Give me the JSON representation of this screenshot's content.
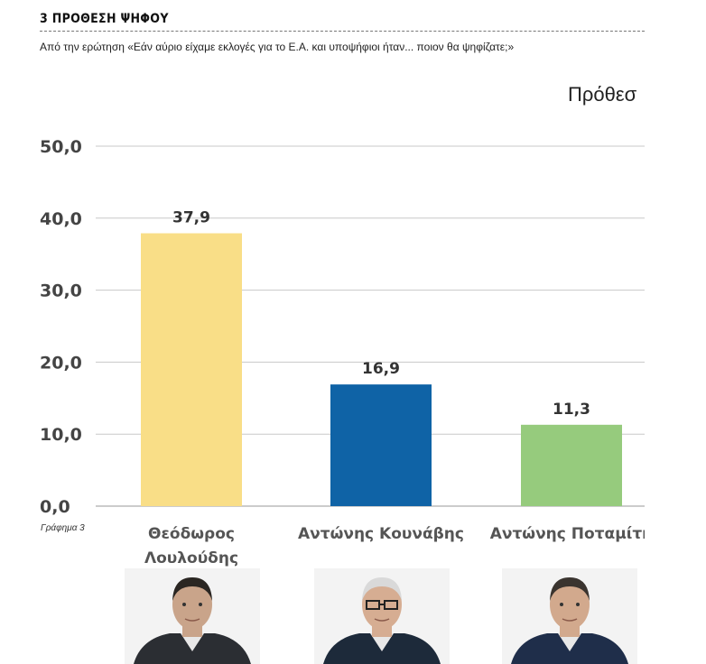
{
  "header": {
    "title": "3 ΠΡΟΘΕΣΗ ΨΗΦΟΥ",
    "subtitle": "Από την ερώτηση «Εάν αύριο είχαμε εκλογές για το Ε.Α. και υποψήφιοι ήταν... ποιον θα ψηφίζατε;»"
  },
  "chart_heading": "Πρόθεσ",
  "source_note": "Γράφημα 3",
  "chart_data": {
    "type": "bar",
    "categories": [
      "Θεόδωρος Λουλούδης",
      "Αντώνης Κουνάβης",
      "Αντώνης Ποταμίτη"
    ],
    "category_lines": [
      [
        "Θεόδωρος",
        "Λουλούδης"
      ],
      [
        "Αντώνης Κουνάβης"
      ],
      [
        "Αντώνης Ποταμίτη"
      ]
    ],
    "values": [
      37.9,
      16.9,
      11.3
    ],
    "value_labels": [
      "37,9",
      "16,9",
      "11,3"
    ],
    "colors": [
      "#f9de87",
      "#0f63a6",
      "#96cb7d"
    ],
    "ylim": [
      0,
      50
    ],
    "yticks": [
      "0,0",
      "10,0",
      "20,0",
      "30,0",
      "40,0",
      "50,0"
    ],
    "grid": true,
    "legend": "none"
  },
  "photos": [
    {
      "name": "Θεόδωρος Λουλούδης",
      "shirt": "#2b2e33",
      "hair": "#2a2622",
      "skin": "#c9a48a"
    },
    {
      "name": "Αντώνης Κουνάβης",
      "shirt": "#1d2a3a",
      "hair": "#d9d9d9",
      "skin": "#d6ad92"
    },
    {
      "name": "Αντώνης Ποταμίτη",
      "shirt": "#1f2e4a",
      "hair": "#3a342f",
      "skin": "#d2a98d"
    }
  ]
}
